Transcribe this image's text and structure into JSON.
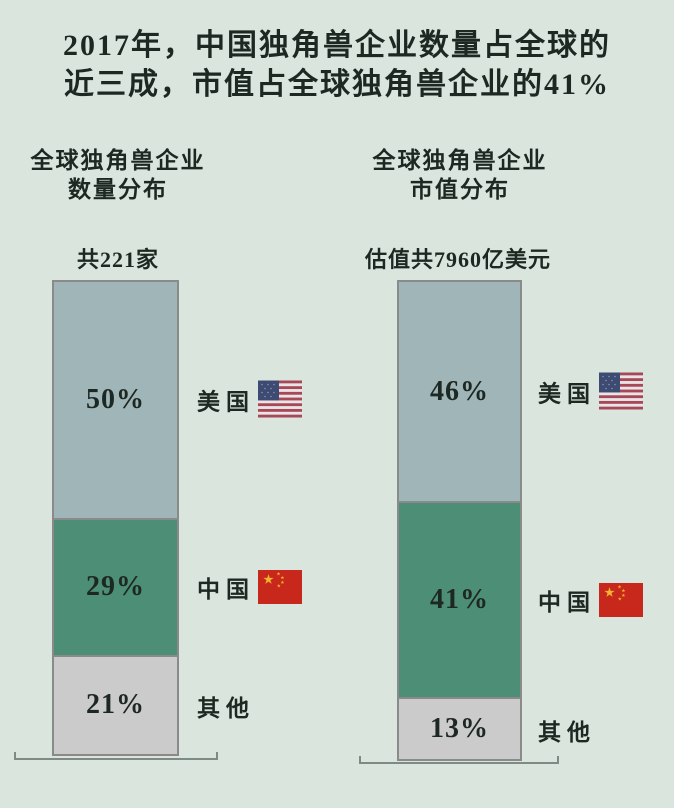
{
  "title": {
    "line1": "2017年，中国独角兽企业数量占全球的",
    "line2": "近三成，市值占全球独角兽企业的41%"
  },
  "charts": [
    {
      "subtitle_line1": "全球独角兽企业",
      "subtitle_line2": "数量分布",
      "total_label": "共221家",
      "segments": [
        {
          "pct_label": "50%",
          "legend": "美国",
          "flag": "us-flag-icon"
        },
        {
          "pct_label": "29%",
          "legend": "中国",
          "flag": "china-flag-icon"
        },
        {
          "pct_label": "21%",
          "legend": "其他",
          "flag": null
        }
      ]
    },
    {
      "subtitle_line1": "全球独角兽企业",
      "subtitle_line2": "市值分布",
      "total_label": "估值共7960亿美元",
      "segments": [
        {
          "pct_label": "46%",
          "legend": "美国",
          "flag": "us-flag-icon"
        },
        {
          "pct_label": "41%",
          "legend": "中国",
          "flag": "china-flag-icon"
        },
        {
          "pct_label": "13%",
          "legend": "其他",
          "flag": null
        }
      ]
    }
  ],
  "chart_data": [
    {
      "type": "bar",
      "subtype": "stacked-percentage-column",
      "title": "全球独角兽企业数量分布",
      "total_label": "共221家",
      "total_value": 221,
      "total_unit": "家",
      "categories": [
        "美国",
        "中国",
        "其他"
      ],
      "values": [
        50,
        29,
        21
      ],
      "value_unit": "%",
      "colors": [
        "#9fb5b8",
        "#4d8e77",
        "#cbcbcb"
      ],
      "legend_position": "right",
      "grid": false
    },
    {
      "type": "bar",
      "subtype": "stacked-percentage-column",
      "title": "全球独角兽企业市值分布",
      "total_label": "估值共7960亿美元",
      "total_value": 7960,
      "total_unit": "亿美元",
      "categories": [
        "美国",
        "中国",
        "其他"
      ],
      "values": [
        46,
        41,
        13
      ],
      "value_unit": "%",
      "colors": [
        "#9fb5b8",
        "#4d8e77",
        "#cbcbcb"
      ],
      "legend_position": "right",
      "grid": false
    }
  ],
  "icons": {
    "us_flag": "us-flag-icon",
    "china_flag": "china-flag-icon"
  },
  "colors": {
    "background": "#dae5de",
    "us_segment": "#9fb5b8",
    "china_segment": "#4d8e77",
    "other_segment": "#cbcbcb",
    "bar_border": "#8a8a8a",
    "baseline": "#7d8a86",
    "text": "#1e2823",
    "cn_flag_red": "#c8271c",
    "cn_flag_yellow": "#f2b42e",
    "us_flag_red": "#a84856",
    "us_flag_blue": "#3d4a72",
    "us_flag_white": "#e8e5e9"
  }
}
